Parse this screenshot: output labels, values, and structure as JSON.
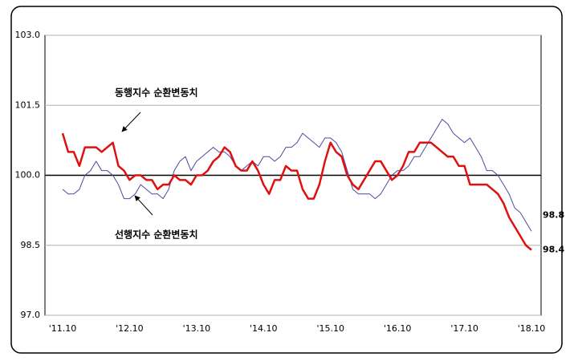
{
  "chart_data": {
    "type": "line",
    "categories": [
      "'11.10",
      null,
      null,
      null,
      null,
      null,
      null,
      null,
      null,
      null,
      null,
      null,
      "'12.10",
      null,
      null,
      null,
      null,
      null,
      null,
      null,
      null,
      null,
      null,
      null,
      "'13.10",
      null,
      null,
      null,
      null,
      null,
      null,
      null,
      null,
      null,
      null,
      null,
      "'14.10",
      null,
      null,
      null,
      null,
      null,
      null,
      null,
      null,
      null,
      null,
      null,
      "'15.10",
      null,
      null,
      null,
      null,
      null,
      null,
      null,
      null,
      null,
      null,
      null,
      "'16.10",
      null,
      null,
      null,
      null,
      null,
      null,
      null,
      null,
      null,
      null,
      null,
      "'17.10",
      null,
      null,
      null,
      null,
      null,
      null,
      null,
      null,
      null,
      null,
      null,
      "'18.10"
    ],
    "series": [
      {
        "name": "선행지수 순환변동치",
        "color": "#4a4aa0",
        "width": 1,
        "values": [
          99.7,
          99.6,
          99.6,
          99.7,
          100.0,
          100.1,
          100.3,
          100.1,
          100.1,
          100.0,
          99.8,
          99.5,
          99.5,
          99.6,
          99.8,
          99.7,
          99.6,
          99.6,
          99.5,
          99.7,
          100.1,
          100.3,
          100.4,
          100.1,
          100.3,
          100.4,
          100.5,
          100.6,
          100.5,
          100.5,
          100.4,
          100.2,
          100.1,
          100.2,
          100.3,
          100.2,
          100.4,
          100.4,
          100.3,
          100.4,
          100.6,
          100.6,
          100.7,
          100.9,
          100.8,
          100.7,
          100.6,
          100.8,
          100.8,
          100.7,
          100.5,
          100.1,
          99.7,
          99.6,
          99.6,
          99.6,
          99.5,
          99.6,
          99.8,
          100.0,
          100.1,
          100.1,
          100.2,
          100.4,
          100.4,
          100.6,
          100.8,
          101.0,
          101.2,
          101.1,
          100.9,
          100.8,
          100.7,
          100.8,
          100.6,
          100.4,
          100.1,
          100.1,
          100.0,
          99.8,
          99.6,
          99.3,
          99.2,
          99.0,
          98.8
        ]
      },
      {
        "name": "동행지수 순환변동치",
        "color": "#e01010",
        "width": 2.5,
        "values": [
          100.9,
          100.5,
          100.5,
          100.2,
          100.6,
          100.6,
          100.6,
          100.5,
          100.6,
          100.7,
          100.2,
          100.1,
          99.9,
          100.0,
          100.0,
          99.9,
          99.9,
          99.7,
          99.8,
          99.8,
          100.0,
          99.9,
          99.9,
          99.8,
          100.0,
          100.0,
          100.1,
          100.3,
          100.4,
          100.6,
          100.5,
          100.2,
          100.1,
          100.1,
          100.3,
          100.1,
          99.8,
          99.6,
          99.9,
          99.9,
          100.2,
          100.1,
          100.1,
          99.7,
          99.5,
          99.5,
          99.8,
          100.3,
          100.7,
          100.5,
          100.4,
          100.0,
          99.8,
          99.7,
          99.9,
          100.1,
          100.3,
          100.3,
          100.1,
          99.9,
          100.0,
          100.2,
          100.5,
          100.5,
          100.7,
          100.7,
          100.7,
          100.6,
          100.5,
          100.4,
          100.4,
          100.2,
          100.2,
          99.8,
          99.8,
          99.8,
          99.8,
          99.7,
          99.6,
          99.4,
          99.1,
          98.9,
          98.7,
          98.5,
          98.4
        ]
      }
    ],
    "ylim": [
      97.0,
      103.0
    ],
    "yticks": [
      {
        "value": 97.0,
        "label": "97.0"
      },
      {
        "value": 98.5,
        "label": "98.5"
      },
      {
        "value": 100.0,
        "label": "100.0"
      },
      {
        "value": 101.5,
        "label": "101.5"
      },
      {
        "value": 103.0,
        "label": "103.0"
      }
    ],
    "grid": true,
    "reference_line": 100.0
  }
}
